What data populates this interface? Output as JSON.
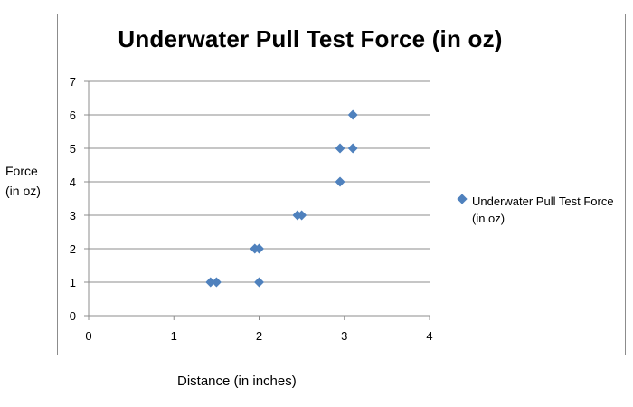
{
  "chart_data": {
    "type": "scatter",
    "title": "Underwater Pull Test Force (in oz)",
    "xlabel": "Distance (in inches)",
    "ylabel": "Force\n(in oz)",
    "xlim": [
      0,
      4
    ],
    "ylim": [
      0,
      7
    ],
    "x_ticks": [
      0,
      1,
      2,
      3,
      4
    ],
    "y_ticks": [
      0,
      1,
      2,
      3,
      4,
      5,
      6,
      7
    ],
    "grid": "horizontal",
    "legend_position": "right",
    "series": [
      {
        "name": "Underwater Pull Test Force (in oz)",
        "color": "#4f81bd",
        "marker": "diamond",
        "points": [
          {
            "x": 1.43,
            "y": 1
          },
          {
            "x": 1.5,
            "y": 1
          },
          {
            "x": 2.0,
            "y": 1
          },
          {
            "x": 1.95,
            "y": 2
          },
          {
            "x": 2.0,
            "y": 2
          },
          {
            "x": 2.45,
            "y": 3
          },
          {
            "x": 2.5,
            "y": 3
          },
          {
            "x": 2.95,
            "y": 4
          },
          {
            "x": 2.95,
            "y": 5
          },
          {
            "x": 3.1,
            "y": 5
          },
          {
            "x": 3.1,
            "y": 6
          }
        ]
      }
    ]
  }
}
